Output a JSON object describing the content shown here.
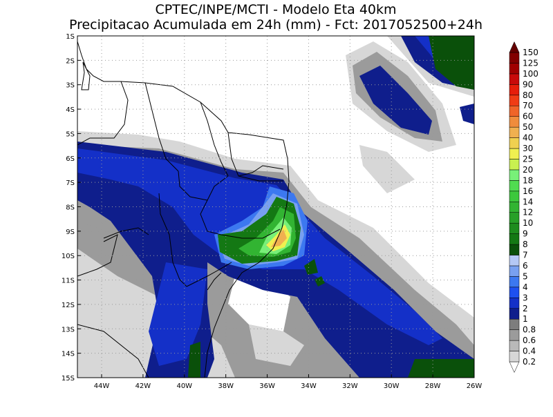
{
  "header": {
    "title": "CPTEC/INPE/MCTI - Modelo Eta 40km",
    "subtitle": "Precipitacao Acumulada em 24h (mm) - Fct: 2017052500+24h"
  },
  "map": {
    "lat_labels": [
      "1S",
      "2S",
      "3S",
      "4S",
      "5S",
      "6S",
      "7S",
      "8S",
      "9S",
      "10S",
      "11S",
      "12S",
      "13S",
      "14S",
      "15S"
    ],
    "lon_labels": [
      "44W",
      "42W",
      "40W",
      "38W",
      "36W",
      "34W",
      "32W",
      "30W",
      "28W",
      "26W"
    ]
  },
  "colorbar": {
    "labels": [
      "0.2",
      "0.4",
      "0.6",
      "0.8",
      "1",
      "2",
      "3",
      "4",
      "5",
      "6",
      "7",
      "8",
      "9",
      "10",
      "12",
      "14",
      "16",
      "18",
      "20",
      "25",
      "30",
      "40",
      "50",
      "60",
      "70",
      "80",
      "90",
      "100",
      "125",
      "150"
    ],
    "colors": [
      "#ffffff",
      "#d7d7d7",
      "#b9b9b9",
      "#9b9b9b",
      "#7d7d7d",
      "#0f1e8c",
      "#1430c8",
      "#1e50f0",
      "#3c78f0",
      "#78a0f0",
      "#b4c8f5",
      "#0a500a",
      "#147814",
      "#1e8c1e",
      "#28a028",
      "#32b432",
      "#3cc83c",
      "#50dc50",
      "#78f078",
      "#c8f050",
      "#f0f050",
      "#f0d050",
      "#f0b050",
      "#f08c3c",
      "#f06428",
      "#f03c14",
      "#e61e0a",
      "#c80a0a",
      "#a00000",
      "#820000",
      "#640000"
    ]
  }
}
